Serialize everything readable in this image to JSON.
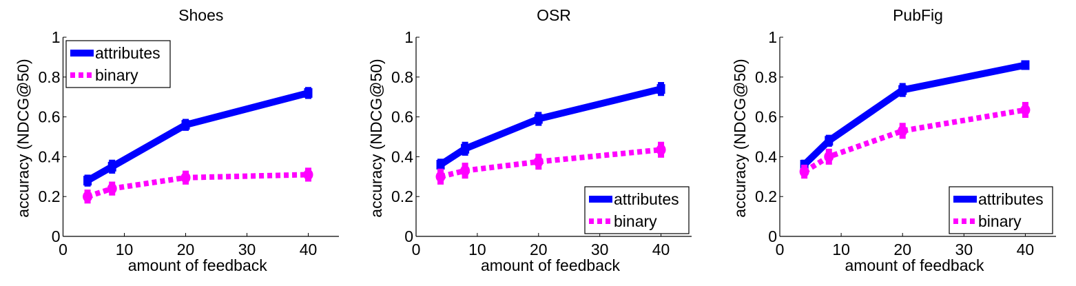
{
  "chart_data": [
    {
      "type": "line",
      "title": "Shoes",
      "xlabel": "amount of feedback",
      "ylabel": "accuracy (NDCG@50)",
      "xlim": [
        0,
        45
      ],
      "ylim": [
        0,
        1
      ],
      "xticks": [
        0,
        10,
        20,
        30,
        40
      ],
      "yticks": [
        0,
        0.2,
        0.4,
        0.6,
        0.8,
        1
      ],
      "ytick_labels": [
        "0",
        "0.2",
        "0.4",
        "0.6",
        "0.8",
        "1"
      ],
      "grid": false,
      "legend_position": "top-left",
      "x": [
        4,
        8,
        20,
        40
      ],
      "series": [
        {
          "name": "attributes",
          "color": "#0000ff",
          "style": "solid",
          "values": [
            0.28,
            0.35,
            0.56,
            0.72
          ],
          "errors": [
            0.03,
            0.035,
            0.03,
            0.03
          ]
        },
        {
          "name": "binary",
          "color": "#ff00ff",
          "style": "dotted",
          "values": [
            0.2,
            0.24,
            0.295,
            0.31
          ],
          "errors": [
            0.035,
            0.035,
            0.035,
            0.035
          ]
        }
      ]
    },
    {
      "type": "line",
      "title": "OSR",
      "xlabel": "amount of feedback",
      "ylabel": "accuracy (NDCG@50)",
      "xlim": [
        0,
        45
      ],
      "ylim": [
        0,
        1
      ],
      "xticks": [
        0,
        10,
        20,
        30,
        40
      ],
      "yticks": [
        0,
        0.2,
        0.4,
        0.6,
        0.8,
        1
      ],
      "ytick_labels": [
        "0",
        "0.2",
        "0.4",
        "0.6",
        "0.8",
        "1"
      ],
      "grid": false,
      "legend_position": "bottom-right",
      "x": [
        4,
        8,
        20,
        40
      ],
      "series": [
        {
          "name": "attributes",
          "color": "#0000ff",
          "style": "solid",
          "values": [
            0.36,
            0.44,
            0.59,
            0.74
          ],
          "errors": [
            0.03,
            0.035,
            0.035,
            0.035
          ]
        },
        {
          "name": "binary",
          "color": "#ff00ff",
          "style": "dotted",
          "values": [
            0.3,
            0.33,
            0.375,
            0.435
          ],
          "errors": [
            0.04,
            0.04,
            0.04,
            0.04
          ]
        }
      ]
    },
    {
      "type": "line",
      "title": "PubFig",
      "xlabel": "amount of feedback",
      "ylabel": "accuracy (NDCG@50)",
      "xlim": [
        0,
        45
      ],
      "ylim": [
        0,
        1
      ],
      "xticks": [
        0,
        10,
        20,
        30,
        40
      ],
      "yticks": [
        0,
        0.2,
        0.4,
        0.6,
        0.8,
        1
      ],
      "ytick_labels": [
        "0",
        "0.2",
        "0.4",
        "0.6",
        "0.8",
        "1"
      ],
      "grid": false,
      "legend_position": "bottom-right",
      "x": [
        4,
        8,
        20,
        40
      ],
      "series": [
        {
          "name": "attributes",
          "color": "#0000ff",
          "style": "solid",
          "values": [
            0.36,
            0.48,
            0.735,
            0.86
          ],
          "errors": [
            0.025,
            0.03,
            0.035,
            0.02
          ]
        },
        {
          "name": "binary",
          "color": "#ff00ff",
          "style": "dotted",
          "values": [
            0.325,
            0.4,
            0.53,
            0.635
          ],
          "errors": [
            0.035,
            0.04,
            0.04,
            0.04
          ]
        }
      ]
    }
  ]
}
